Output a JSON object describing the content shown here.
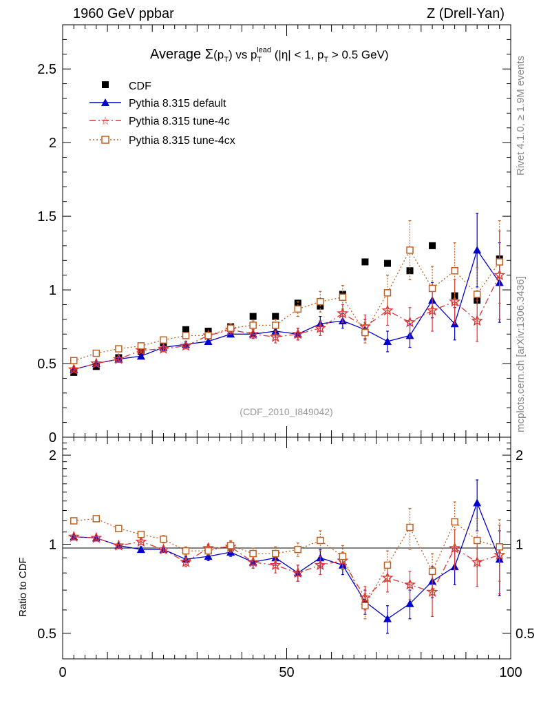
{
  "header": {
    "left": "1960 GeV ppbar",
    "right": "Z (Drell-Yan)"
  },
  "title": {
    "prefix": "Average ",
    "sigma": "Σ",
    "p": "p",
    "T": "T",
    "vs": " vs p",
    "lead": "lead",
    "cut": " (|η| < 1, p",
    "cut_end": " > 0.5 GeV)"
  },
  "side_labels": {
    "rivet": "Rivet 4.1.0, ≥ 1.9M events",
    "mcplots": "mcplots.cern.ch [arXiv:1306.3436]"
  },
  "watermark": "(CDF_2010_I849042)",
  "legend": [
    {
      "key": "cdf",
      "label": "CDF"
    },
    {
      "key": "default",
      "label": "Pythia 8.315 default"
    },
    {
      "key": "tune4c",
      "label": "Pythia 8.315 tune-4c"
    },
    {
      "key": "tune4cx",
      "label": "Pythia 8.315 tune-4cx"
    }
  ],
  "colors": {
    "cdf": "#000000",
    "default": "#0000cc",
    "tune4c": "#dd3333",
    "tune4cx": "#c06020",
    "axis": "#000000"
  },
  "chart_data": [
    {
      "type": "scatter",
      "panel": "main",
      "title": "Average Σ(pT) vs pT lead (|η| < 1, pT > 0.5 GeV)",
      "xlim": [
        0,
        100
      ],
      "ylim": [
        0,
        2.8
      ],
      "yticks": [
        0,
        0.5,
        1,
        1.5,
        2,
        2.5
      ],
      "ytick_labels": [
        "0",
        "0.5",
        "1",
        "1.5",
        "2",
        "2.5"
      ],
      "x": [
        2.5,
        7.5,
        12.5,
        17.5,
        22.5,
        27.5,
        32.5,
        37.5,
        42.5,
        47.5,
        52.5,
        57.5,
        62.5,
        67.5,
        72.5,
        77.5,
        82.5,
        87.5,
        92.5,
        97.5
      ],
      "series": [
        {
          "name": "CDF",
          "key": "cdf",
          "marker": "square",
          "values": [
            0.44,
            0.48,
            0.54,
            0.58,
            0.64,
            0.73,
            0.72,
            0.75,
            0.82,
            0.82,
            0.91,
            0.89,
            0.97,
            1.19,
            1.18,
            1.13,
            1.3,
            0.96,
            0.93,
            1.21
          ],
          "errors": [
            0,
            0,
            0,
            0,
            0,
            0,
            0,
            0,
            0,
            0,
            0,
            0,
            0,
            0,
            0,
            0,
            0,
            0,
            0,
            0
          ]
        },
        {
          "name": "Pythia 8.315 default",
          "key": "default",
          "marker": "triangle",
          "dash": "",
          "values": [
            0.46,
            0.5,
            0.53,
            0.55,
            0.61,
            0.63,
            0.65,
            0.7,
            0.7,
            0.72,
            0.7,
            0.77,
            0.79,
            0.73,
            0.65,
            0.69,
            0.93,
            0.77,
            1.27,
            1.05
          ],
          "errors": [
            0.01,
            0.01,
            0.01,
            0.01,
            0.02,
            0.02,
            0.02,
            0.02,
            0.03,
            0.04,
            0.04,
            0.05,
            0.05,
            0.07,
            0.07,
            0.08,
            0.12,
            0.11,
            0.25,
            0.27
          ]
        },
        {
          "name": "Pythia 8.315 tune-4c",
          "key": "tune4c",
          "marker": "star",
          "dash": "9,4,2,4",
          "values": [
            0.46,
            0.5,
            0.53,
            0.59,
            0.6,
            0.62,
            0.69,
            0.73,
            0.7,
            0.68,
            0.7,
            0.74,
            0.84,
            0.75,
            0.86,
            0.78,
            0.86,
            0.92,
            0.79,
            1.1
          ],
          "errors": [
            0.01,
            0.01,
            0.01,
            0.01,
            0.02,
            0.02,
            0.02,
            0.03,
            0.03,
            0.04,
            0.04,
            0.05,
            0.06,
            0.08,
            0.1,
            0.1,
            0.14,
            0.15,
            0.14,
            0.3
          ]
        },
        {
          "name": "Pythia 8.315 tune-4cx",
          "key": "tune4cx",
          "marker": "opensquare",
          "dash": "2,3",
          "values": [
            0.52,
            0.57,
            0.6,
            0.62,
            0.66,
            0.69,
            0.69,
            0.74,
            0.76,
            0.76,
            0.87,
            0.92,
            0.95,
            0.71,
            0.98,
            1.27,
            1.01,
            1.13,
            0.97,
            1.19
          ],
          "errors": [
            0.01,
            0.01,
            0.01,
            0.02,
            0.02,
            0.02,
            0.02,
            0.03,
            0.03,
            0.04,
            0.05,
            0.07,
            0.08,
            0.07,
            0.12,
            0.2,
            0.15,
            0.19,
            0.18,
            0.28
          ]
        }
      ]
    },
    {
      "type": "scatter",
      "panel": "ratio",
      "ylabel": "Ratio to CDF",
      "xlim": [
        0,
        100
      ],
      "ylim": [
        0.41,
        2.3
      ],
      "yscale": "log",
      "yticks": [
        0.5,
        1,
        2
      ],
      "ytick_labels": [
        "0.5",
        "1",
        "2"
      ],
      "xticks": [
        0,
        50,
        100
      ],
      "xtick_labels": [
        "0",
        "50",
        "100"
      ],
      "x": [
        2.5,
        7.5,
        12.5,
        17.5,
        22.5,
        27.5,
        32.5,
        37.5,
        42.5,
        47.5,
        52.5,
        57.5,
        62.5,
        67.5,
        72.5,
        77.5,
        82.5,
        87.5,
        92.5,
        97.5
      ],
      "series": [
        {
          "name": "Pythia 8.315 default",
          "key": "default",
          "values": [
            1.06,
            1.05,
            0.99,
            0.96,
            0.96,
            0.89,
            0.91,
            0.94,
            0.87,
            0.9,
            0.8,
            0.9,
            0.85,
            0.64,
            0.56,
            0.63,
            0.75,
            0.84,
            1.38,
            0.89
          ],
          "errors": [
            0.01,
            0.01,
            0.01,
            0.02,
            0.02,
            0.02,
            0.03,
            0.03,
            0.04,
            0.05,
            0.05,
            0.06,
            0.06,
            0.06,
            0.06,
            0.07,
            0.09,
            0.11,
            0.27,
            0.22
          ]
        },
        {
          "name": "Pythia 8.315 tune-4c",
          "key": "tune4c",
          "values": [
            1.06,
            1.05,
            0.99,
            1.02,
            0.96,
            0.87,
            0.97,
            0.98,
            0.87,
            0.85,
            0.8,
            0.85,
            0.88,
            0.66,
            0.77,
            0.73,
            0.69,
            0.97,
            0.87,
            0.92
          ],
          "errors": [
            0.01,
            0.01,
            0.01,
            0.02,
            0.02,
            0.03,
            0.03,
            0.04,
            0.04,
            0.05,
            0.05,
            0.06,
            0.06,
            0.06,
            0.08,
            0.08,
            0.12,
            0.15,
            0.15,
            0.24
          ]
        },
        {
          "name": "Pythia 8.315 tune-4cx",
          "key": "tune4cx",
          "values": [
            1.2,
            1.22,
            1.13,
            1.08,
            1.04,
            0.95,
            0.95,
            0.99,
            0.93,
            0.93,
            0.96,
            1.03,
            0.91,
            0.62,
            0.85,
            1.14,
            0.81,
            1.19,
            1.03,
            0.98
          ],
          "errors": [
            0.02,
            0.02,
            0.02,
            0.02,
            0.03,
            0.03,
            0.03,
            0.04,
            0.04,
            0.05,
            0.05,
            0.08,
            0.08,
            0.06,
            0.1,
            0.18,
            0.12,
            0.2,
            0.19,
            0.23
          ]
        }
      ]
    }
  ]
}
